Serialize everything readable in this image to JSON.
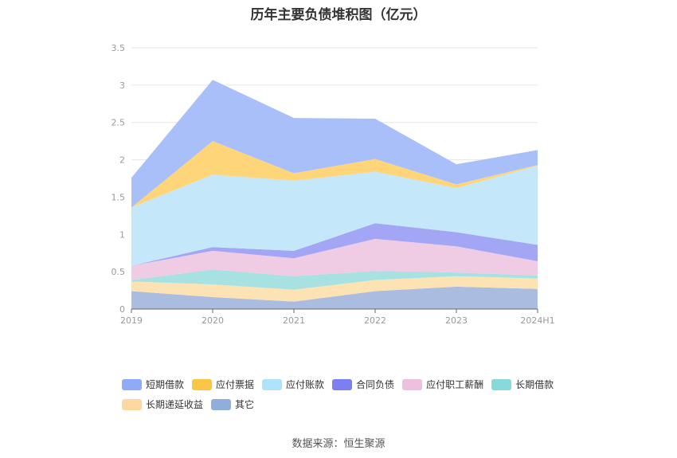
{
  "title": "历年主要负债堆积图（亿元）",
  "source": "数据来源：恒生聚源",
  "chart_data": {
    "type": "area",
    "stacked": true,
    "categories": [
      "2019",
      "2020",
      "2021",
      "2022",
      "2023",
      "2024H1"
    ],
    "ylim": [
      0,
      3.5
    ],
    "yticks": [
      "0",
      "0.5",
      "1",
      "1.5",
      "2",
      "2.5",
      "3",
      "3.5"
    ],
    "grid": true,
    "legend_position": "bottom",
    "series": [
      {
        "name": "其它",
        "color": "#aabde0",
        "values": [
          0.24,
          0.16,
          0.1,
          0.24,
          0.3,
          0.27
        ]
      },
      {
        "name": "长期递延收益",
        "color": "#fde2b3",
        "values": [
          0.13,
          0.17,
          0.16,
          0.15,
          0.14,
          0.14
        ]
      },
      {
        "name": "长期借款",
        "color": "#a8e1e1",
        "values": [
          0.02,
          0.2,
          0.18,
          0.12,
          0.05,
          0.04
        ]
      },
      {
        "name": "应付职工薪酬",
        "color": "#f0cce4",
        "values": [
          0.19,
          0.25,
          0.24,
          0.43,
          0.35,
          0.19
        ]
      },
      {
        "name": "合同负债",
        "color": "#a3a5f5",
        "values": [
          0.0,
          0.05,
          0.1,
          0.21,
          0.19,
          0.22
        ]
      },
      {
        "name": "应付账款",
        "color": "#c4e8fa",
        "values": [
          0.78,
          0.97,
          0.94,
          0.69,
          0.59,
          1.06
        ]
      },
      {
        "name": "应付票据",
        "color": "#ffd57a",
        "values": [
          0.0,
          0.45,
          0.1,
          0.17,
          0.05,
          0.01
        ]
      },
      {
        "name": "短期借款",
        "color": "#a8bff9",
        "values": [
          0.4,
          0.82,
          0.74,
          0.54,
          0.27,
          0.2
        ]
      }
    ]
  },
  "legend": {
    "row1": [
      {
        "label": "短期借款",
        "color": "#8eaaf8"
      },
      {
        "label": "应付票据",
        "color": "#fcc544"
      },
      {
        "label": "应付账款",
        "color": "#ade3fb"
      },
      {
        "label": "合同负债",
        "color": "#7b7ff1"
      },
      {
        "label": "应付职工薪酬",
        "color": "#efbfdf"
      },
      {
        "label": "长期借款",
        "color": "#88d9d9"
      }
    ],
    "row2": [
      {
        "label": "长期递延收益",
        "color": "#fed8a1"
      },
      {
        "label": "其它",
        "color": "#90addb"
      }
    ]
  }
}
